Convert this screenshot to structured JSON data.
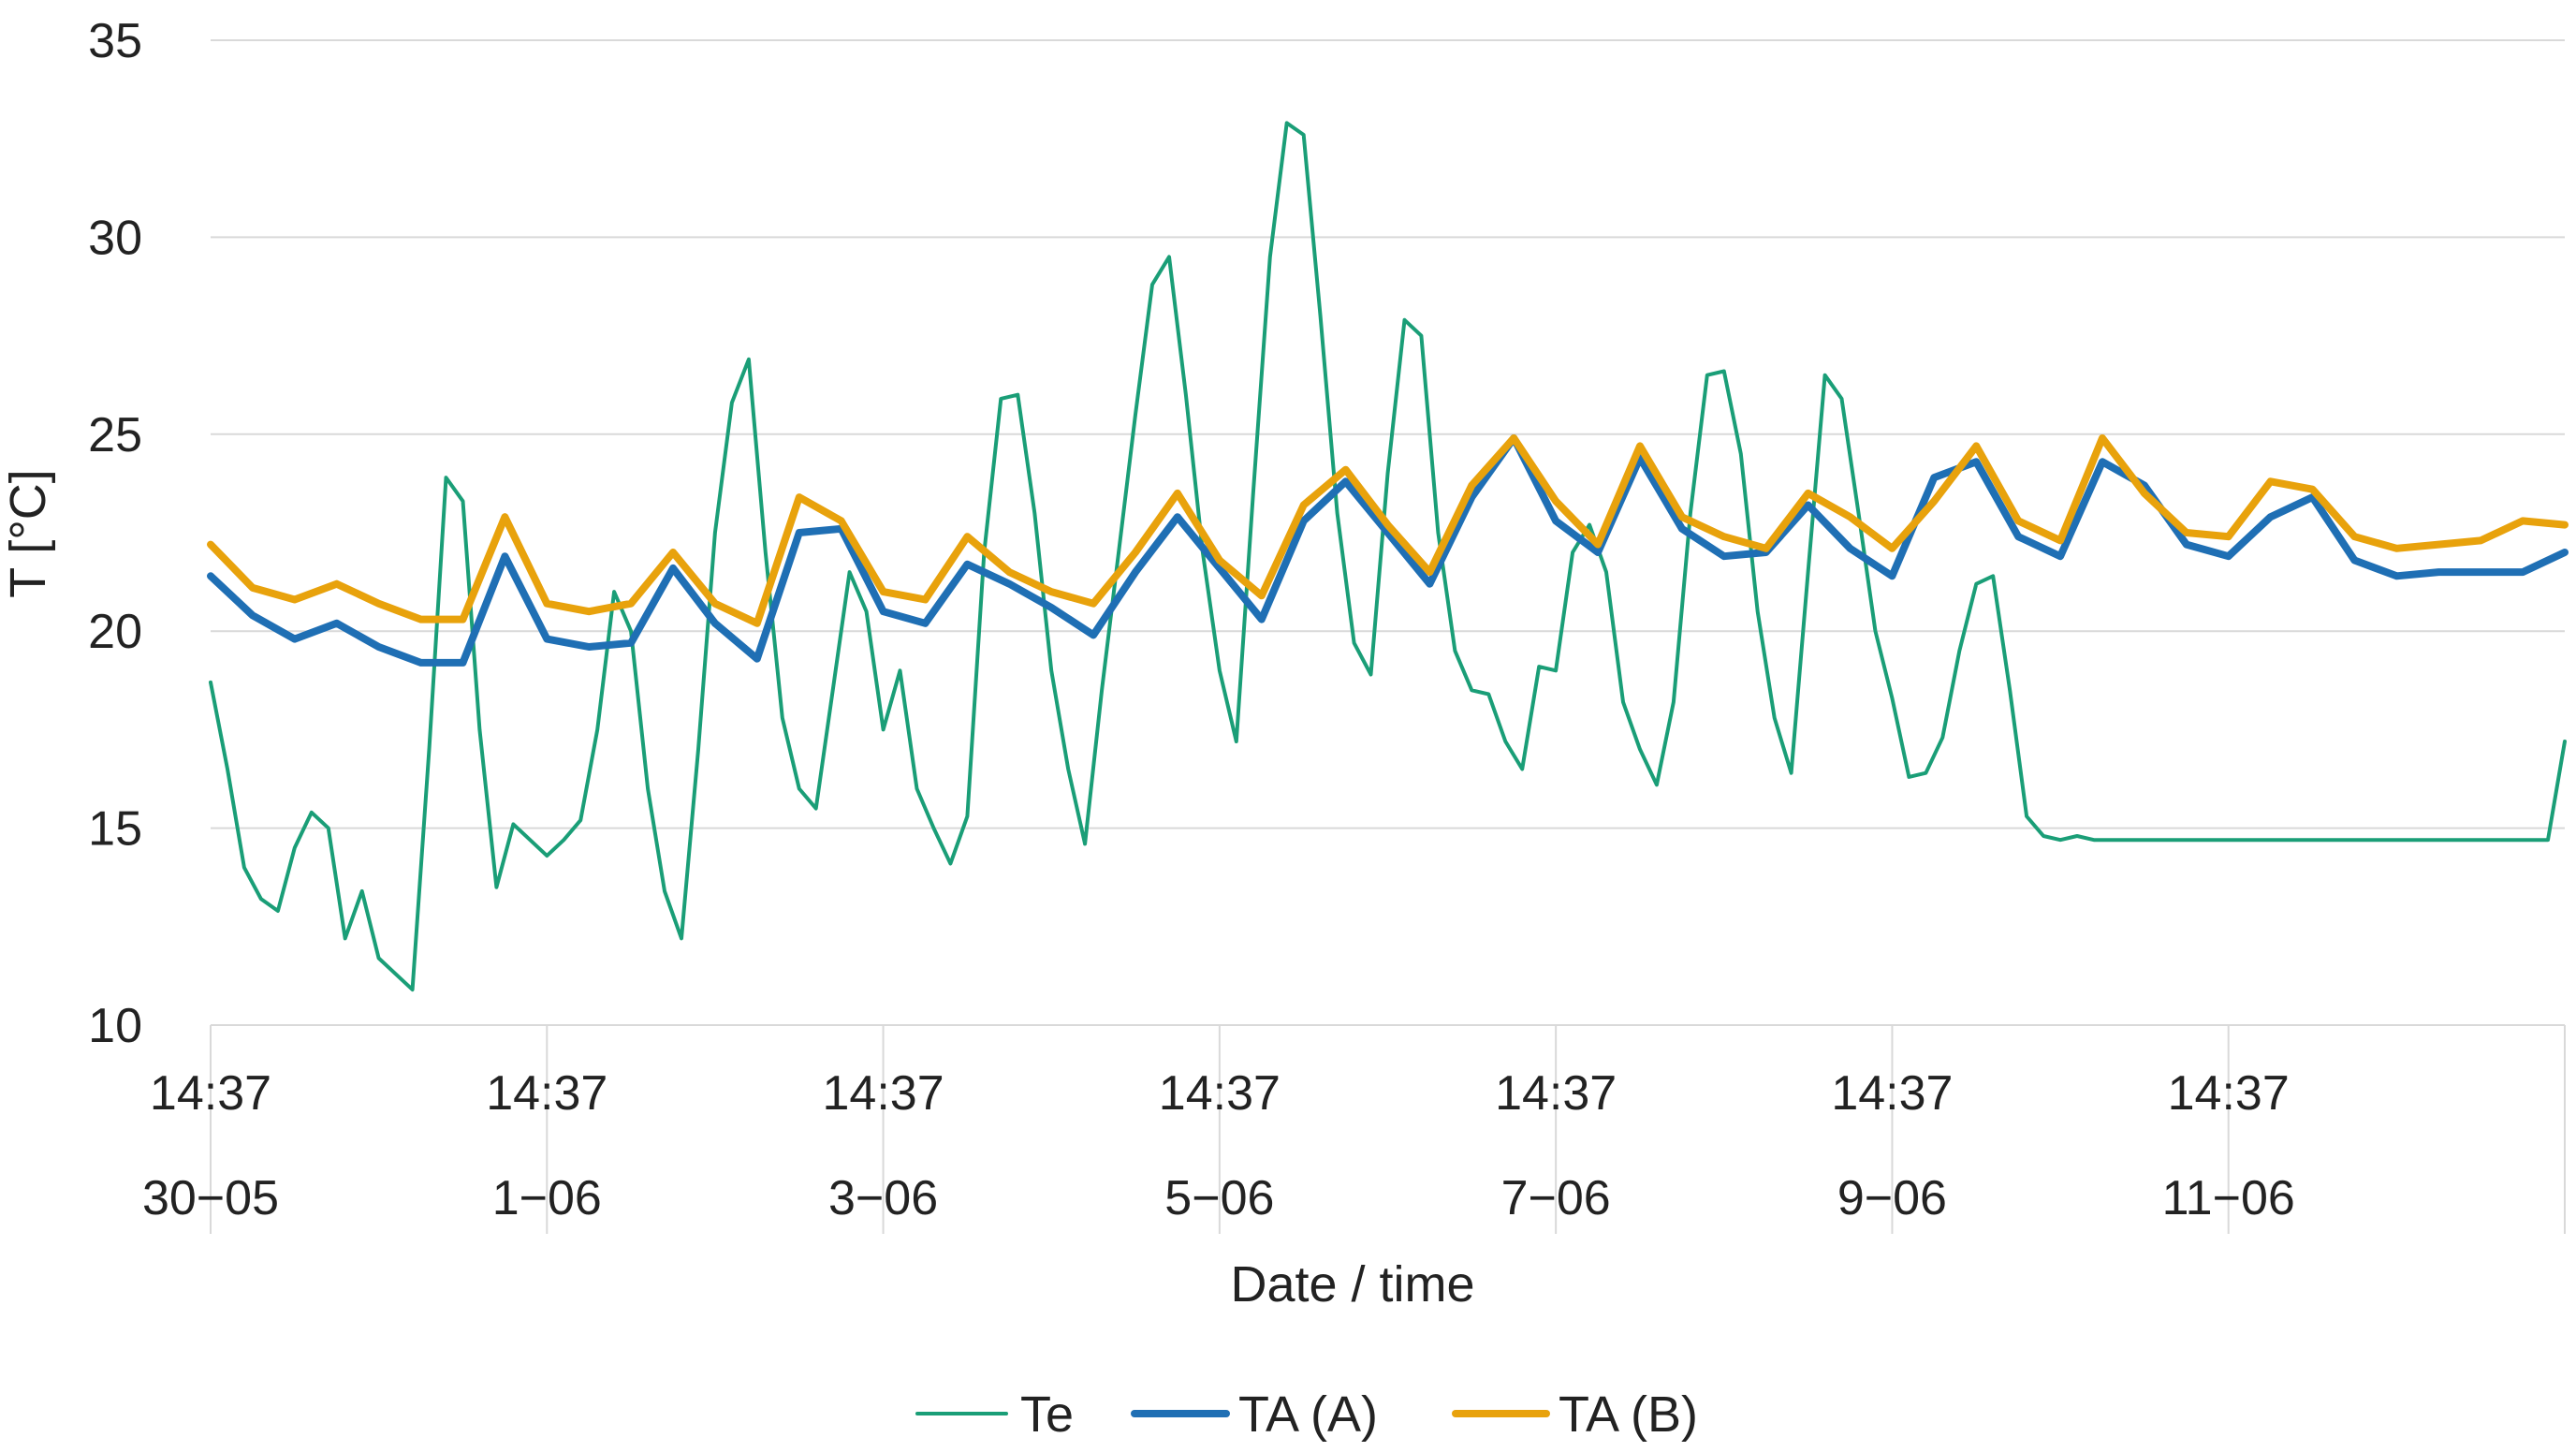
{
  "chart_data": {
    "type": "line",
    "title": "",
    "xlabel": "Date / time",
    "ylabel": "T [°C]",
    "ylim": [
      10,
      35
    ],
    "yticks": [
      10,
      15,
      20,
      25,
      30,
      35
    ],
    "xlim": [
      0,
      14
    ],
    "x_category_labels": [
      {
        "time": "14:37",
        "date": "30−05"
      },
      {
        "time": "14:37",
        "date": "1−06"
      },
      {
        "time": "14:37",
        "date": "3−06"
      },
      {
        "time": "14:37",
        "date": "5−06"
      },
      {
        "time": "14:37",
        "date": "7−06"
      },
      {
        "time": "14:37",
        "date": "9−06"
      },
      {
        "time": "14:37",
        "date": "11−06"
      }
    ],
    "x_units": "days since 30−05 14:37",
    "grid": true,
    "legend_position": "bottom",
    "series": [
      {
        "name": "Te",
        "color": "#1a9e77",
        "x": [
          0,
          0.1,
          0.2,
          0.3,
          0.4,
          0.5,
          0.6,
          0.7,
          0.8,
          0.9,
          1.0,
          1.1,
          1.2,
          1.3,
          1.4,
          1.5,
          1.6,
          1.7,
          1.8,
          1.9,
          2.0,
          2.1,
          2.2,
          2.3,
          2.4,
          2.5,
          2.6,
          2.7,
          2.8,
          2.9,
          3.0,
          3.1,
          3.2,
          3.3,
          3.4,
          3.5,
          3.6,
          3.7,
          3.8,
          3.9,
          4.0,
          4.1,
          4.2,
          4.3,
          4.4,
          4.5,
          4.6,
          4.7,
          4.8,
          4.9,
          5.0,
          5.1,
          5.2,
          5.3,
          5.4,
          5.5,
          5.6,
          5.7,
          5.8,
          5.9,
          6.0,
          6.1,
          6.2,
          6.3,
          6.4,
          6.5,
          6.6,
          6.7,
          6.8,
          6.9,
          7.0,
          7.1,
          7.2,
          7.3,
          7.4,
          7.5,
          7.6,
          7.7,
          7.8,
          7.9,
          8.0,
          8.1,
          8.2,
          8.3,
          8.4,
          8.5,
          8.6,
          8.7,
          8.8,
          8.9,
          9.0,
          9.1,
          9.2,
          9.3,
          9.4,
          9.5,
          9.6,
          9.7,
          9.8,
          9.9,
          10.0,
          10.1,
          10.2,
          10.3,
          10.4,
          10.5,
          10.6,
          10.7,
          10.8,
          10.9,
          11.0,
          11.1,
          11.2,
          11.3,
          11.4,
          11.5,
          11.6,
          11.7,
          11.8,
          11.9,
          12.0,
          12.1,
          12.2,
          12.3,
          12.4,
          12.5,
          12.6,
          12.7,
          12.8,
          12.9,
          13.0,
          13.1,
          13.2,
          13.3,
          13.4,
          13.5,
          13.6,
          13.7,
          13.8,
          13.9,
          14.0
        ],
        "values": [
          18.7,
          16.5,
          14.0,
          13.2,
          12.9,
          14.5,
          15.4,
          15.0,
          12.2,
          13.4,
          11.7,
          11.3,
          10.9,
          17.0,
          23.9,
          23.3,
          17.5,
          13.5,
          15.1,
          14.7,
          14.3,
          14.7,
          15.2,
          17.5,
          21.0,
          20.0,
          16.0,
          13.4,
          12.2,
          17.0,
          22.5,
          25.8,
          26.9,
          22.0,
          17.8,
          16.0,
          15.5,
          18.5,
          21.5,
          20.5,
          17.5,
          19.0,
          16.0,
          15.0,
          14.1,
          15.3,
          22.0,
          25.9,
          26.0,
          23.0,
          19.0,
          16.5,
          14.6,
          18.5,
          22.0,
          25.5,
          28.8,
          29.5,
          26.0,
          22.0,
          19.0,
          17.2,
          23.5,
          29.5,
          32.9,
          32.6,
          28.0,
          23.0,
          19.7,
          18.9,
          24.0,
          27.9,
          27.5,
          22.5,
          19.5,
          18.5,
          18.4,
          17.2,
          16.5,
          19.1,
          19.0,
          22.0,
          22.7,
          21.5,
          18.2,
          17.0,
          16.1,
          18.2,
          23.0,
          26.5,
          26.6,
          24.5,
          20.5,
          17.8,
          16.4,
          21.5,
          26.5,
          25.9,
          23.0,
          20.0,
          18.3,
          16.3,
          16.4,
          17.3,
          19.5,
          21.2,
          21.4,
          18.5,
          15.3,
          14.8,
          14.7,
          14.8,
          14.7,
          14.7,
          14.7,
          14.7,
          14.7,
          14.7,
          14.7,
          14.7,
          14.7,
          14.7,
          14.7,
          14.7,
          14.7,
          14.7,
          14.7,
          14.7,
          14.7,
          14.7,
          14.7,
          14.7,
          14.7,
          14.7,
          14.7,
          14.7,
          14.7,
          14.7,
          14.7,
          14.7,
          17.2
        ]
      },
      {
        "name": "TA (A)",
        "color": "#1f6fb4",
        "x": [
          0,
          0.25,
          0.5,
          0.75,
          1.0,
          1.25,
          1.5,
          1.75,
          2.0,
          2.25,
          2.5,
          2.75,
          3.0,
          3.25,
          3.5,
          3.75,
          4.0,
          4.25,
          4.5,
          4.75,
          5.0,
          5.25,
          5.5,
          5.75,
          6.0,
          6.25,
          6.5,
          6.75,
          7.0,
          7.25,
          7.5,
          7.75,
          8.0,
          8.25,
          8.5,
          8.75,
          9.0,
          9.25,
          9.5,
          9.75,
          10.0,
          10.25,
          10.5,
          10.75,
          11.0,
          11.25,
          11.5,
          11.75,
          12.0,
          12.25,
          12.5,
          12.75,
          13.0,
          13.25,
          13.5,
          13.75,
          14.0
        ],
        "values": [
          21.4,
          20.4,
          19.8,
          20.2,
          19.6,
          19.2,
          19.2,
          21.9,
          19.8,
          19.6,
          19.7,
          21.6,
          20.2,
          19.3,
          22.5,
          22.6,
          20.5,
          20.2,
          21.7,
          21.2,
          20.6,
          19.9,
          21.5,
          22.9,
          21.6,
          20.3,
          22.8,
          23.8,
          22.5,
          21.2,
          23.4,
          24.9,
          22.8,
          22.0,
          24.4,
          22.6,
          21.9,
          22.0,
          23.2,
          22.1,
          21.4,
          23.9,
          24.3,
          22.4,
          21.9,
          24.3,
          23.7,
          22.2,
          21.9,
          22.9,
          23.4,
          21.8,
          21.4,
          21.5,
          21.5,
          21.5,
          22.0
        ]
      },
      {
        "name": "TA (B)",
        "color": "#e8a20c",
        "x": [
          0,
          0.25,
          0.5,
          0.75,
          1.0,
          1.25,
          1.5,
          1.75,
          2.0,
          2.25,
          2.5,
          2.75,
          3.0,
          3.25,
          3.5,
          3.75,
          4.0,
          4.25,
          4.5,
          4.75,
          5.0,
          5.25,
          5.5,
          5.75,
          6.0,
          6.25,
          6.5,
          6.75,
          7.0,
          7.25,
          7.5,
          7.75,
          8.0,
          8.25,
          8.5,
          8.75,
          9.0,
          9.25,
          9.5,
          9.75,
          10.0,
          10.25,
          10.5,
          10.75,
          11.0,
          11.25,
          11.5,
          11.75,
          12.0,
          12.25,
          12.5,
          12.75,
          13.0,
          13.25,
          13.5,
          13.75,
          14.0
        ],
        "values": [
          22.2,
          21.1,
          20.8,
          21.2,
          20.7,
          20.3,
          20.3,
          22.9,
          20.7,
          20.5,
          20.7,
          22.0,
          20.7,
          20.2,
          23.4,
          22.8,
          21.0,
          20.8,
          22.4,
          21.5,
          21.0,
          20.7,
          22.0,
          23.5,
          21.8,
          20.9,
          23.2,
          24.1,
          22.7,
          21.5,
          23.7,
          24.9,
          23.3,
          22.2,
          24.7,
          22.9,
          22.4,
          22.1,
          23.5,
          22.9,
          22.1,
          23.3,
          24.7,
          22.8,
          22.3,
          24.9,
          23.5,
          22.5,
          22.4,
          23.8,
          23.6,
          22.4,
          22.1,
          22.2,
          22.3,
          22.8,
          22.7
        ]
      }
    ]
  }
}
